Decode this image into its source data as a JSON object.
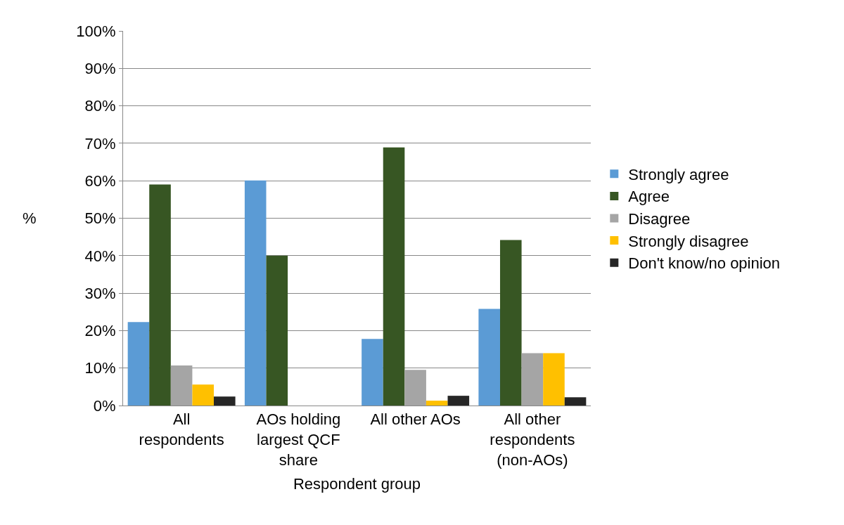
{
  "chart_data": {
    "type": "bar",
    "xlabel": "Respondent group",
    "ylabel": "%",
    "categories": [
      "All respondents",
      "AOs holding largest QCF share",
      "All other AOs",
      "All other respondents (non-AOs)"
    ],
    "series": [
      {
        "name": "Strongly agree",
        "color": "#5b9bd5",
        "values": [
          22.3,
          60.1,
          17.8,
          25.8
        ]
      },
      {
        "name": "Agree",
        "color": "#375623",
        "values": [
          59,
          40,
          68.9,
          44.2
        ]
      },
      {
        "name": "Disagree",
        "color": "#a5a5a5",
        "values": [
          10.7,
          0,
          9.5,
          14
        ]
      },
      {
        "name": "Strongly disagree",
        "color": "#ffc000",
        "values": [
          5.6,
          0,
          1.3,
          14
        ]
      },
      {
        "name": "Don't know/no opinion",
        "color": "#262626",
        "values": [
          2.4,
          0,
          2.6,
          2.2
        ]
      }
    ],
    "ylim": [
      0,
      100
    ],
    "yticks": [
      {
        "value": 0,
        "label": "0%"
      },
      {
        "value": 10,
        "label": "10%"
      },
      {
        "value": 20,
        "label": "20%"
      },
      {
        "value": 30,
        "label": "30%"
      },
      {
        "value": 40,
        "label": "40%"
      },
      {
        "value": 50,
        "label": "50%"
      },
      {
        "value": 60,
        "label": "60%"
      },
      {
        "value": 70,
        "label": "70%"
      },
      {
        "value": 80,
        "label": "80%"
      },
      {
        "value": 90,
        "label": "90%"
      },
      {
        "value": 100,
        "label": "100%"
      }
    ],
    "grid": "y",
    "legend": "right"
  }
}
